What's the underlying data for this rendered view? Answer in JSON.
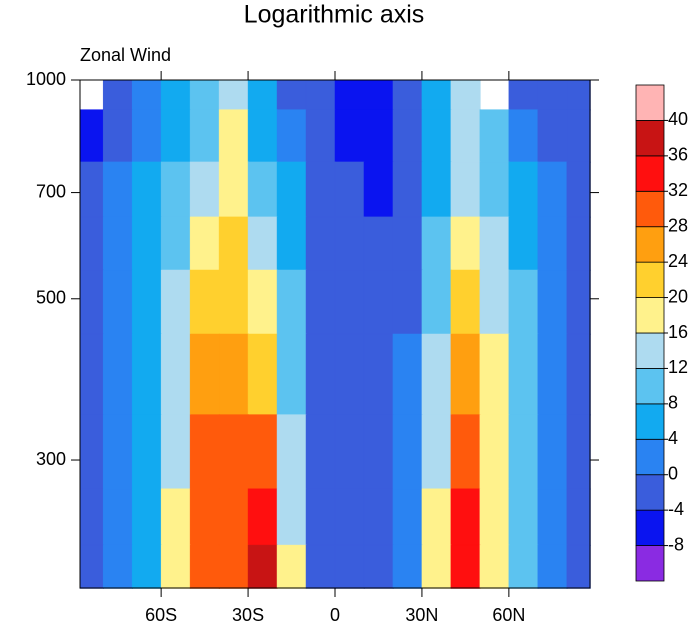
{
  "chart_data": {
    "type": "contour",
    "title": "Logarithmic axis",
    "subtitle": "Zonal Wind",
    "x": [
      -85,
      -75,
      -65,
      -55,
      -45,
      -35,
      -25,
      -15,
      -5,
      5,
      15,
      25,
      35,
      45,
      55,
      65,
      75,
      85
    ],
    "y": [
      975,
      850,
      700,
      600,
      500,
      400,
      300,
      250,
      210
    ],
    "z": [
      [
        null,
        -2,
        2,
        6,
        10,
        14,
        4,
        -2,
        -2,
        -6,
        -6,
        -2,
        6,
        12,
        null,
        -2,
        -2,
        -2
      ],
      [
        -6,
        -2,
        2,
        6,
        10,
        16,
        6,
        2,
        -2,
        -6,
        -6,
        -2,
        6,
        14,
        8,
        2,
        -2,
        -2
      ],
      [
        -2,
        2,
        4,
        8,
        14,
        18,
        10,
        4,
        -2,
        -2,
        -6,
        -2,
        6,
        14,
        10,
        4,
        0,
        -2
      ],
      [
        -2,
        2,
        6,
        10,
        18,
        20,
        14,
        6,
        -2,
        -2,
        -2,
        -2,
        8,
        18,
        12,
        6,
        2,
        -2
      ],
      [
        -2,
        2,
        6,
        12,
        22,
        22,
        18,
        8,
        -2,
        -2,
        -2,
        -2,
        10,
        22,
        14,
        8,
        2,
        -2
      ],
      [
        -2,
        2,
        6,
        14,
        24,
        26,
        22,
        10,
        -2,
        -2,
        -2,
        2,
        12,
        26,
        16,
        8,
        2,
        -2
      ],
      [
        -2,
        2,
        6,
        14,
        28,
        30,
        30,
        12,
        -2,
        -2,
        -2,
        2,
        14,
        30,
        18,
        8,
        2,
        -2
      ],
      [
        -2,
        2,
        6,
        16,
        30,
        30,
        34,
        14,
        -2,
        -2,
        -2,
        2,
        16,
        32,
        18,
        8,
        2,
        -2
      ],
      [
        -2,
        2,
        6,
        16,
        30,
        30,
        38,
        16,
        -2,
        -2,
        -2,
        2,
        16,
        34,
        18,
        8,
        2,
        -2
      ]
    ],
    "xlim": [
      -88,
      88
    ],
    "xticks": [
      {
        "value": -60,
        "label": "60S"
      },
      {
        "value": -30,
        "label": "30S"
      },
      0,
      {
        "value": 30,
        "label": "30N"
      },
      {
        "value": 60,
        "label": "60N"
      }
    ],
    "ylim": [
      1000,
      200
    ],
    "yticks": [
      1000,
      700,
      500,
      300
    ],
    "log_y": true,
    "levels": [
      -8,
      -4,
      0,
      4,
      8,
      12,
      16,
      20,
      24,
      28,
      32,
      36,
      40
    ],
    "colors": [
      "#8a2be2",
      "#0a14f0",
      "#3a5ddc",
      "#2a83f2",
      "#12aaf0",
      "#5cc3f0",
      "#aedbf0",
      "#fff28c",
      "#ffd02e",
      "#ff9f10",
      "#ff5a0c",
      "#ff0f0f",
      "#c81414",
      "#ffb4b4"
    ]
  }
}
